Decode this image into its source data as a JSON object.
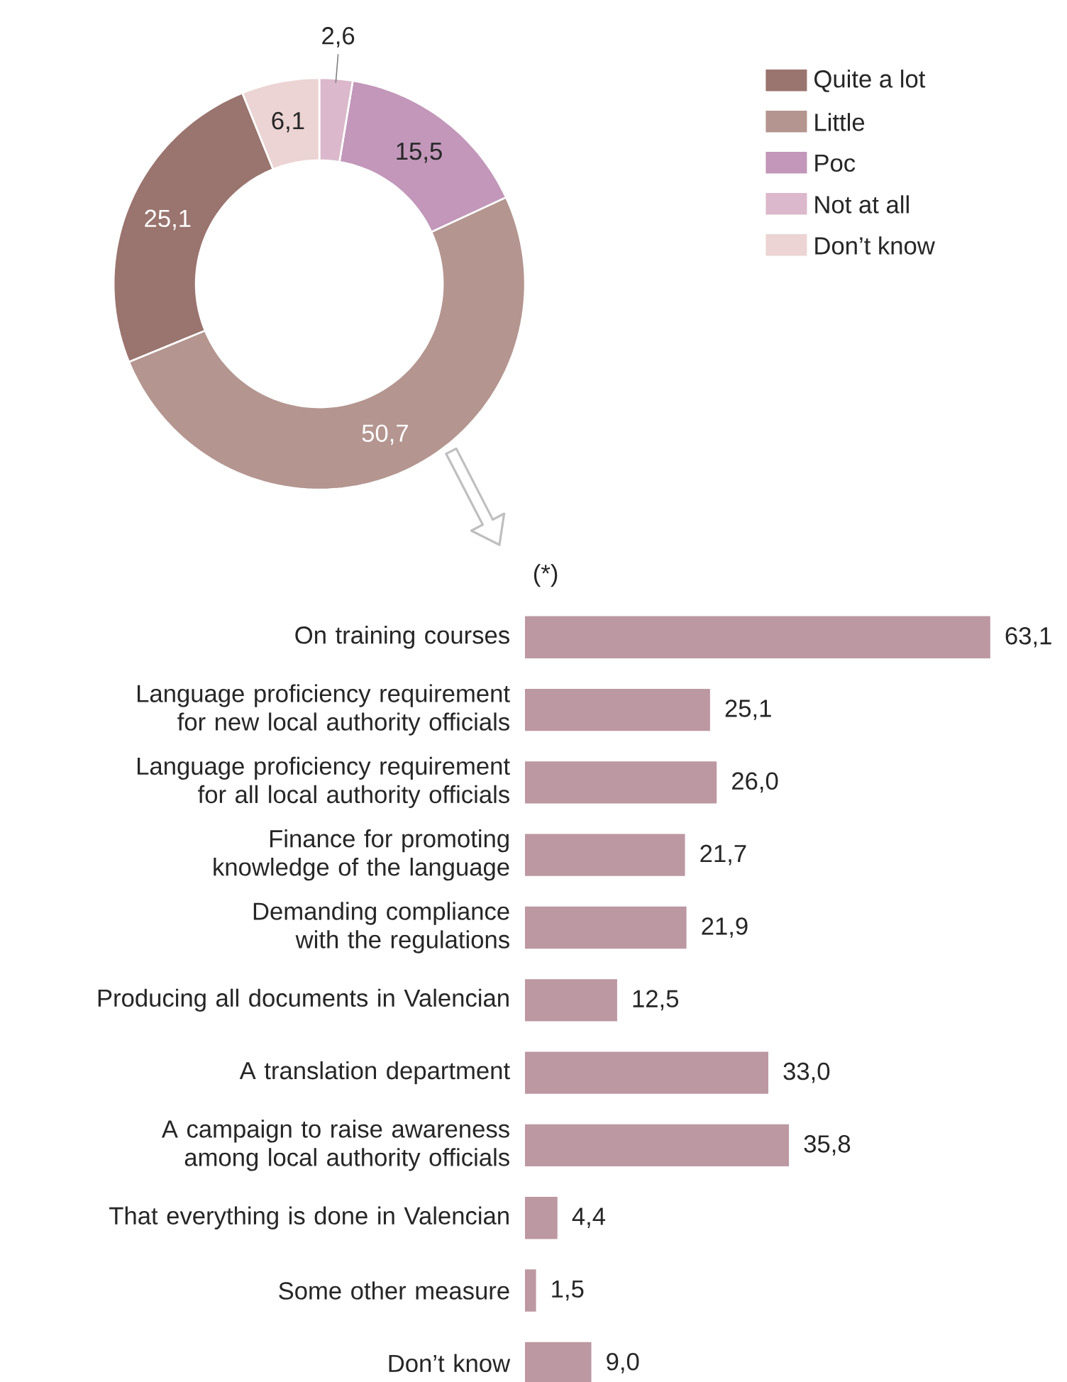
{
  "chart_data": [
    {
      "type": "donut",
      "categories": [
        "Quite a lot",
        "Little",
        "Poc",
        "Not at all",
        "Don’t know"
      ],
      "values": [
        25.1,
        50.7,
        15.5,
        2.6,
        6.1
      ],
      "colors": [
        "#9a746e",
        "#b4958f",
        "#c297ba",
        "#dbb8cb",
        "#ebd4d3"
      ],
      "value_labels": [
        "25,1",
        "50,7",
        "15,5",
        "2,6",
        "6,1"
      ],
      "legend": "right"
    },
    {
      "type": "bar",
      "orientation": "horizontal",
      "annotations": [
        "(*)"
      ],
      "categories": [
        "On training courses",
        "Language proficiency requirement for new local authority officials",
        "Language proficiency requirement for all local authority officials",
        "Finance for promoting knowledge of the language",
        "Demanding compliance with the regulations",
        "Producing all documents in Valencian",
        "A translation department",
        "A campaign to raise awareness among local authority officials",
        "That everything is done in Valencian",
        "Some other measure",
        "Don’t know"
      ],
      "values": [
        63.1,
        25.1,
        26.0,
        21.7,
        21.9,
        12.5,
        33.0,
        35.8,
        4.4,
        1.5,
        9.0
      ],
      "color": "#bc98a2",
      "value_labels": [
        "63,1",
        "25,1",
        "26,0",
        "21,7",
        "21,9",
        "12,5",
        "33,0",
        "35,8",
        "4,4",
        "1,5",
        "9,0"
      ]
    }
  ]
}
